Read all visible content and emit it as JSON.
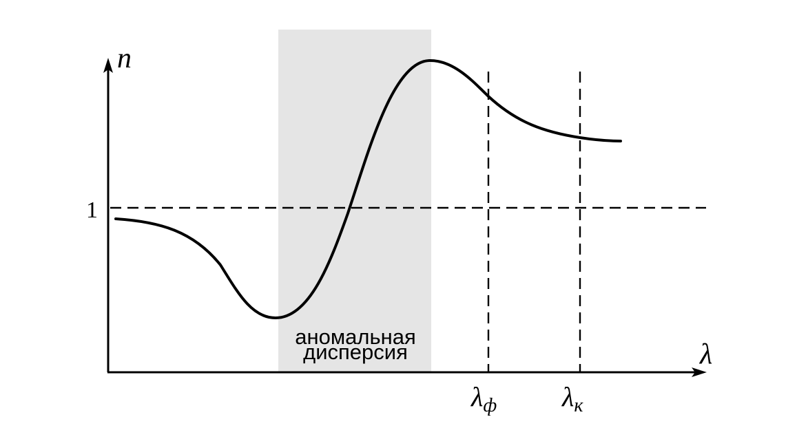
{
  "diagram": {
    "y_axis_label": "n",
    "x_axis_label": "λ",
    "unity_label": "1",
    "region_label_line1": "аномальная",
    "region_label_line2": "дисперсия",
    "lambda_f": {
      "base": "λ",
      "sub": "ф"
    },
    "lambda_k": {
      "base": "λ",
      "sub": "к"
    },
    "colors": {
      "line": "#000000",
      "anomalous_region_fill": "#e5e5e5",
      "background": "#ffffff"
    }
  }
}
